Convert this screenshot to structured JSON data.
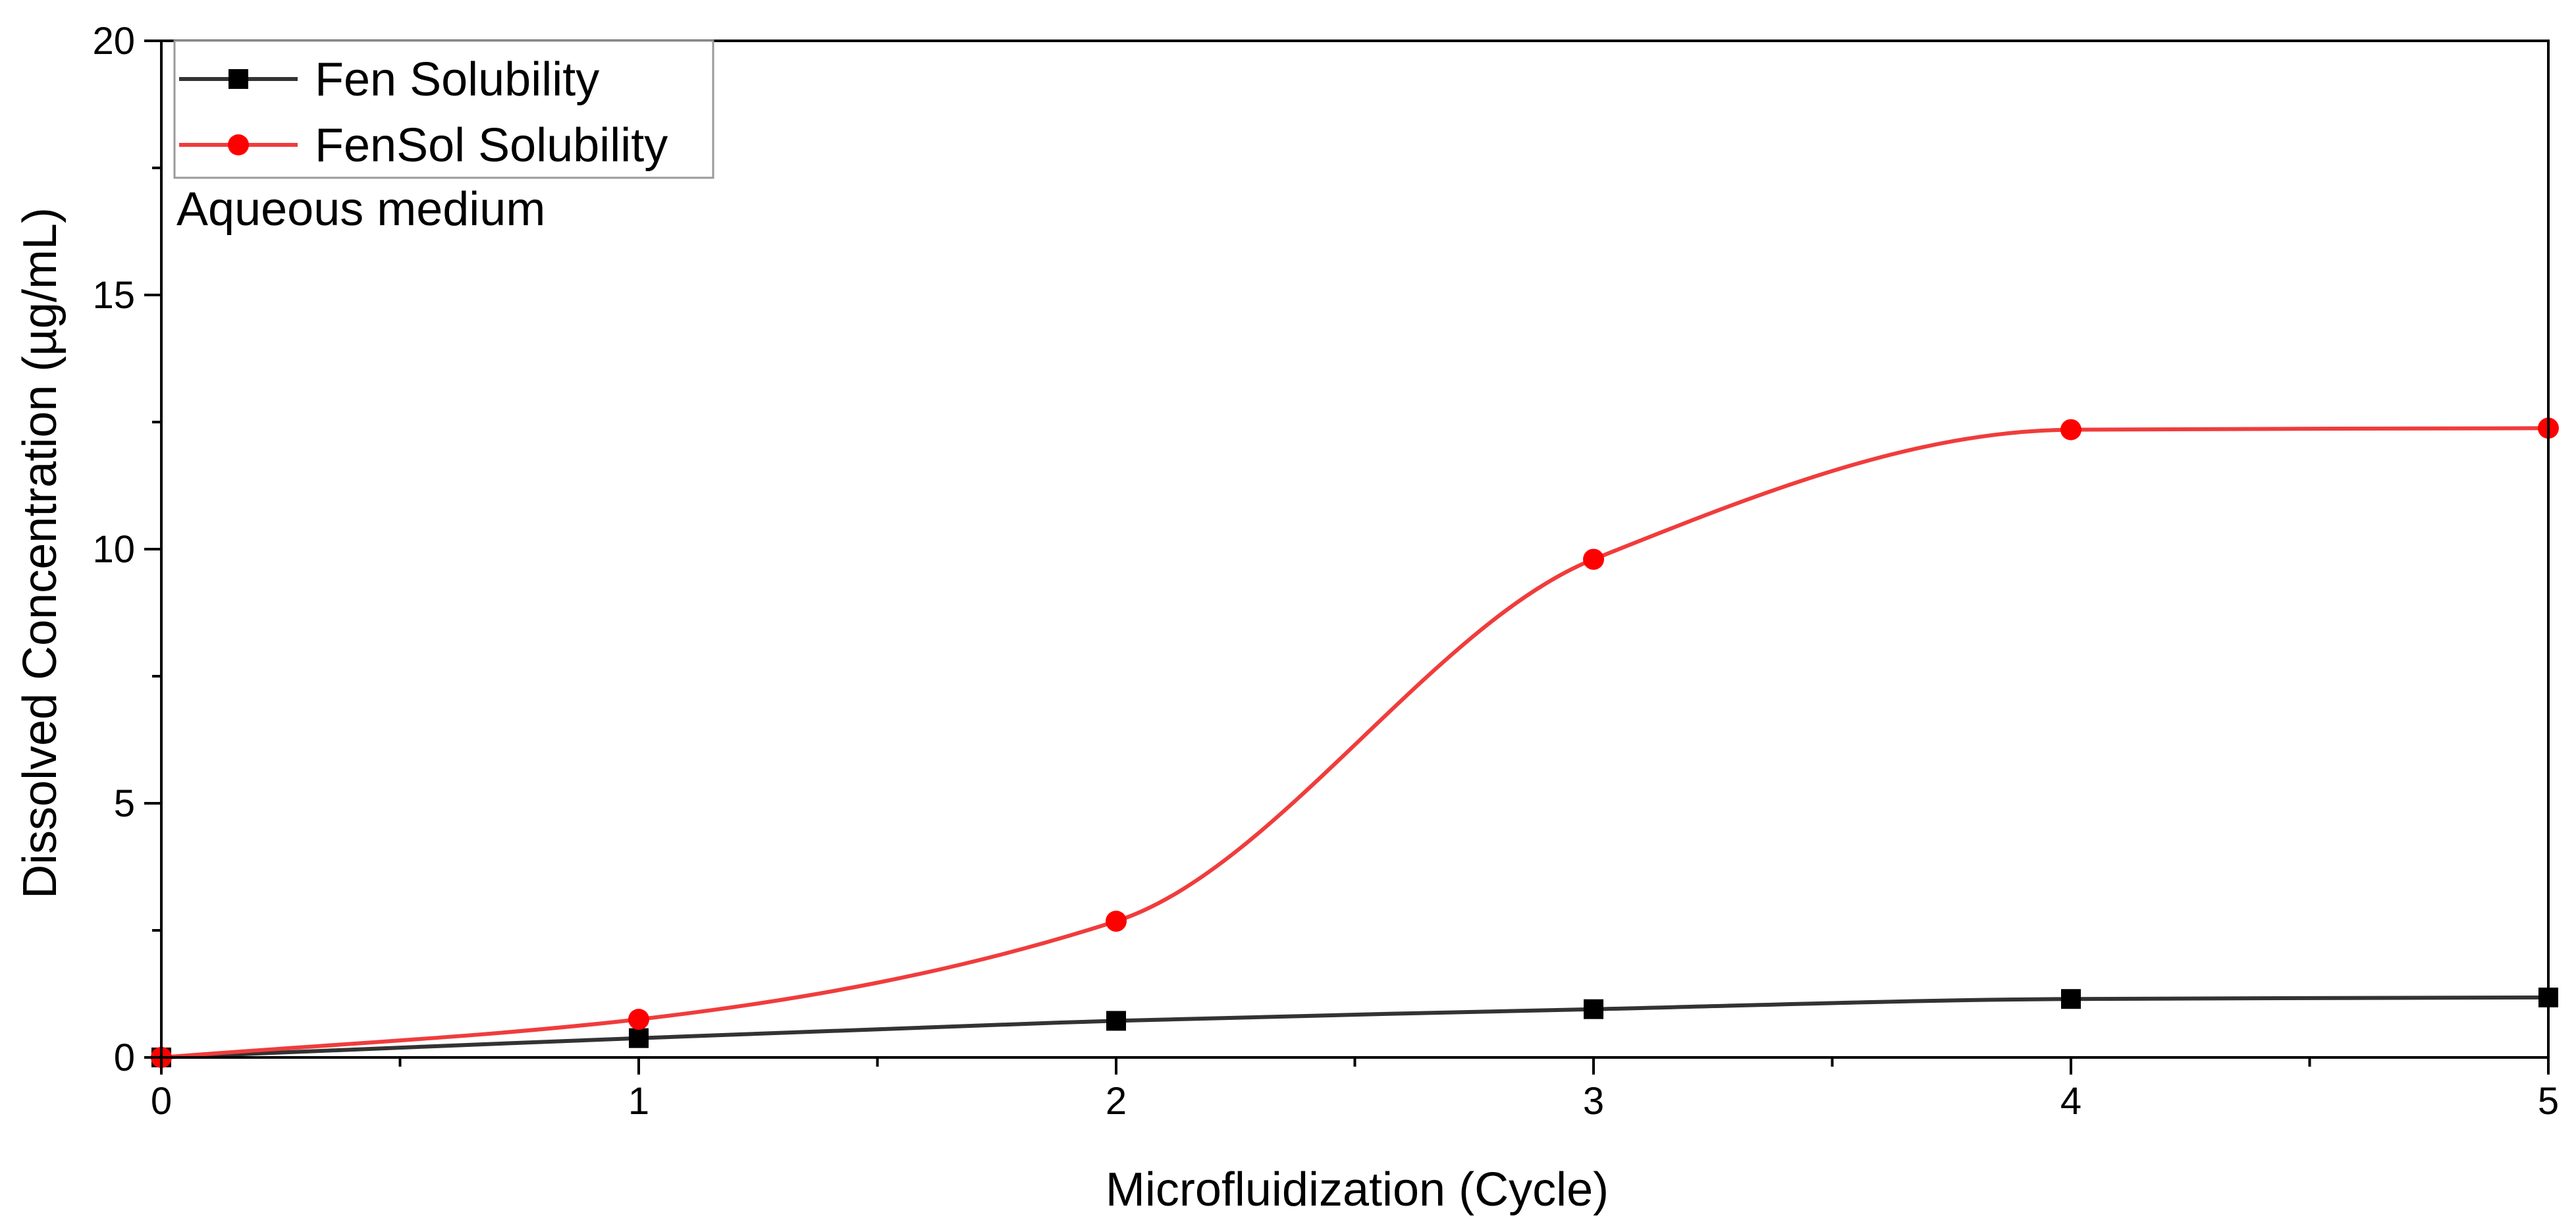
{
  "chart_data": {
    "type": "line",
    "title": "",
    "xlabel": "Microfluidization (Cycle)",
    "ylabel": "Dissolved Concentration (µg/mL)",
    "xlim": [
      0,
      5
    ],
    "ylim": [
      0,
      20
    ],
    "x_ticks": [
      0,
      1,
      2,
      3,
      4,
      5
    ],
    "y_ticks": [
      0,
      5,
      10,
      15,
      20
    ],
    "x_tick_labels": [
      "0",
      "1",
      "2",
      "3",
      "4",
      "5"
    ],
    "y_tick_labels": [
      "0",
      "5",
      "10",
      "15",
      "20"
    ],
    "grid": false,
    "legend_position": "top-left",
    "annotation": "Aqueous medium",
    "x": [
      0,
      1,
      2,
      3,
      4,
      5
    ],
    "series": [
      {
        "name": "Fen Solubility",
        "values": [
          0,
          0.38,
          0.72,
          0.95,
          1.15,
          1.18
        ],
        "color": "#333333",
        "marker": "square"
      },
      {
        "name": "FenSol Solubility",
        "values": [
          0,
          0.75,
          2.68,
          9.8,
          12.35,
          12.38
        ],
        "color": "#ff0000",
        "line_color": "#f03c3c",
        "marker": "circle"
      }
    ]
  }
}
